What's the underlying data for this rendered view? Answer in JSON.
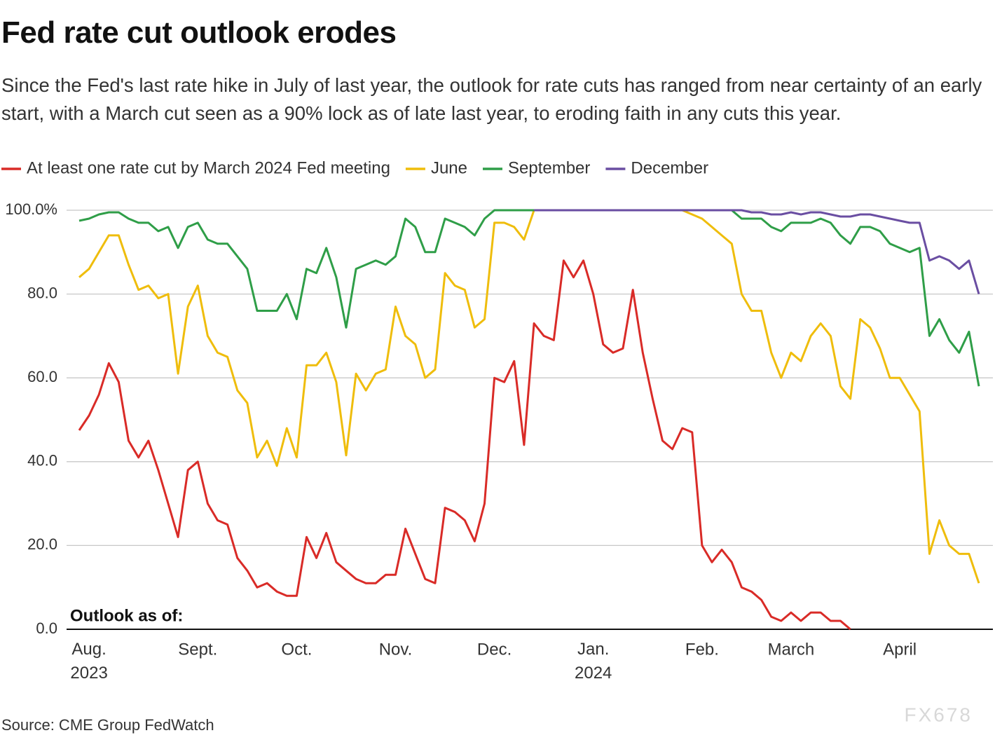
{
  "chart_data": {
    "type": "line",
    "title": "Fed rate cut outlook erodes",
    "subtitle": "Since the Fed's last rate hike in July of last year, the outlook for rate cuts has ranged from near certainty of an early start, with a March cut seen as a 90% lock as of late last year, to eroding faith in any cuts this year.",
    "annotation": "Outlook as of:",
    "source": "Source: CME Group FedWatch",
    "watermark": "FX678",
    "categories": [
      null,
      "Aug. 2023",
      null,
      null,
      null,
      null,
      null,
      null,
      null,
      null,
      null,
      null,
      "Sept.",
      null,
      null,
      null,
      null,
      null,
      null,
      null,
      null,
      null,
      "Oct.",
      null,
      null,
      null,
      null,
      null,
      null,
      null,
      null,
      null,
      "Nov.",
      null,
      null,
      null,
      null,
      null,
      null,
      null,
      null,
      null,
      "Dec.",
      null,
      null,
      null,
      null,
      null,
      null,
      null,
      null,
      null,
      "Jan. 2024",
      null,
      null,
      null,
      null,
      null,
      null,
      null,
      null,
      null,
      null,
      "Feb.",
      null,
      null,
      null,
      null,
      null,
      null,
      null,
      null,
      "March",
      null,
      null,
      null,
      null,
      null,
      null,
      null,
      null,
      null,
      null,
      "April",
      null,
      null,
      null,
      null,
      null,
      null,
      null,
      null
    ],
    "series": [
      {
        "name": "At least one rate cut by March 2024 Fed meeting",
        "color": "#d92b27",
        "values": [
          47.5,
          51,
          56,
          63.5,
          59,
          45,
          41,
          45,
          38,
          30,
          22,
          38,
          40,
          30,
          26,
          25,
          17,
          14,
          10,
          11,
          9,
          8,
          8,
          22,
          17,
          23,
          16,
          14,
          12,
          11,
          11,
          13,
          13,
          24,
          18,
          12,
          11,
          29,
          28,
          26,
          21,
          30,
          60,
          59,
          64,
          44,
          73,
          70,
          69,
          88,
          84,
          88,
          80,
          68,
          66,
          67,
          81,
          66,
          55,
          45,
          43,
          48,
          47,
          20,
          16,
          19,
          16,
          10,
          9,
          7,
          3,
          2,
          4,
          2,
          4,
          4,
          2,
          2,
          0,
          null,
          null,
          null,
          null,
          null,
          null,
          null,
          null,
          null,
          null,
          null,
          null,
          null
        ]
      },
      {
        "name": "June",
        "color": "#efbd0c",
        "values": [
          84,
          86,
          90,
          94,
          94,
          87,
          81,
          82,
          79,
          80,
          61,
          77,
          82,
          70,
          66,
          65,
          57,
          54,
          41,
          45,
          39,
          48,
          41,
          63,
          63,
          66,
          59,
          41.5,
          61,
          57,
          61,
          62,
          77,
          70,
          68,
          60,
          62,
          85,
          82,
          81,
          72,
          74,
          97,
          97,
          96,
          93,
          100,
          100,
          100,
          100,
          100,
          100,
          100,
          100,
          100,
          100,
          100,
          100,
          100,
          100,
          100,
          100,
          99,
          98,
          96,
          94,
          92,
          80,
          76,
          76,
          66,
          60,
          66,
          64,
          70,
          73,
          70,
          58,
          55,
          74,
          72,
          67,
          60,
          60,
          56,
          52,
          18,
          26,
          20,
          18,
          18,
          11
        ]
      },
      {
        "name": "September",
        "color": "#2f9e48",
        "values": [
          97.5,
          98,
          99,
          99.5,
          99.5,
          98,
          97,
          97,
          95,
          96,
          91,
          96,
          97,
          93,
          92,
          92,
          89,
          86,
          76,
          76,
          76,
          80,
          74,
          86,
          85,
          91,
          84,
          72,
          86,
          87,
          88,
          87,
          89,
          98,
          96,
          90,
          90,
          98,
          97,
          96,
          94,
          98,
          100,
          100,
          100,
          100,
          100,
          100,
          100,
          100,
          100,
          100,
          100,
          100,
          100,
          100,
          100,
          100,
          100,
          100,
          100,
          100,
          100,
          100,
          100,
          100,
          100,
          98,
          98,
          98,
          96,
          95,
          97,
          97,
          97,
          98,
          97,
          94,
          92,
          96,
          96,
          95,
          92,
          91,
          90,
          91,
          70,
          74,
          69,
          66,
          71,
          58
        ]
      },
      {
        "name": "December",
        "color": "#6a4ea2",
        "values": [
          null,
          null,
          null,
          null,
          null,
          null,
          null,
          null,
          null,
          null,
          null,
          null,
          null,
          null,
          null,
          null,
          null,
          null,
          null,
          null,
          null,
          null,
          null,
          null,
          null,
          null,
          null,
          null,
          null,
          null,
          null,
          null,
          null,
          null,
          null,
          null,
          null,
          null,
          null,
          null,
          null,
          null,
          null,
          null,
          null,
          null,
          100,
          100,
          100,
          100,
          100,
          100,
          100,
          100,
          100,
          100,
          100,
          100,
          100,
          100,
          100,
          100,
          100,
          100,
          100,
          100,
          100,
          100,
          99.5,
          99.5,
          99,
          99,
          99.5,
          99,
          99.5,
          99.5,
          99,
          98.5,
          98.5,
          99,
          99,
          98.5,
          98,
          97.5,
          97,
          97,
          88,
          89,
          88,
          86,
          88,
          80
        ]
      }
    ],
    "ylim": [
      0,
      100
    ],
    "yticks": [
      {
        "value": 0,
        "label": "0.0"
      },
      {
        "value": 20,
        "label": "20.0"
      },
      {
        "value": 40,
        "label": "40.0"
      },
      {
        "value": 60,
        "label": "60.0"
      },
      {
        "value": 80,
        "label": "80.0"
      },
      {
        "value": 100,
        "label": "100.0%"
      }
    ],
    "grid": true,
    "legend": "top-left"
  }
}
